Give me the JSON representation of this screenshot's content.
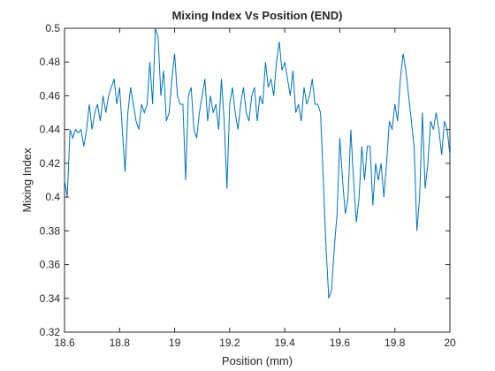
{
  "chart_data": {
    "type": "line",
    "title": "Mixing Index Vs Position (END)",
    "x_label": "Position (mm)",
    "y_label": "Mixing Index",
    "x": [
      18.6,
      18.61,
      18.62,
      18.63,
      18.64,
      18.65,
      18.66,
      18.67,
      18.68,
      18.69,
      18.7,
      18.71,
      18.72,
      18.73,
      18.74,
      18.75,
      18.76,
      18.77,
      18.78,
      18.79,
      18.8,
      18.81,
      18.82,
      18.83,
      18.84,
      18.85,
      18.86,
      18.87,
      18.88,
      18.89,
      18.9,
      18.91,
      18.92,
      18.93,
      18.94,
      18.95,
      18.96,
      18.97,
      18.98,
      18.99,
      19,
      19.01,
      19.02,
      19.03,
      19.04,
      19.05,
      19.06,
      19.07,
      19.08,
      19.09,
      19.1,
      19.11,
      19.12,
      19.13,
      19.14,
      19.15,
      19.16,
      19.17,
      19.18,
      19.19,
      19.2,
      19.21,
      19.22,
      19.23,
      19.24,
      19.25,
      19.26,
      19.27,
      19.28,
      19.29,
      19.3,
      19.31,
      19.32,
      19.33,
      19.34,
      19.35,
      19.36,
      19.37,
      19.38,
      19.39,
      19.4,
      19.41,
      19.42,
      19.43,
      19.44,
      19.45,
      19.46,
      19.47,
      19.48,
      19.49,
      19.5,
      19.51,
      19.52,
      19.53,
      19.54,
      19.55,
      19.56,
      19.57,
      19.58,
      19.59,
      19.6,
      19.61,
      19.62,
      19.63,
      19.64,
      19.65,
      19.66,
      19.67,
      19.68,
      19.69,
      19.7,
      19.71,
      19.72,
      19.73,
      19.74,
      19.75,
      19.76,
      19.77,
      19.78,
      19.79,
      19.8,
      19.81,
      19.82,
      19.83,
      19.84,
      19.85,
      19.86,
      19.87,
      19.88,
      19.89,
      19.9,
      19.91,
      19.92,
      19.93,
      19.94,
      19.95,
      19.96,
      19.97,
      19.98,
      19.99,
      20
    ],
    "series": [
      {
        "name": "Mixing Index",
        "color": "#0072bd",
        "values": [
          0.41,
          0.4,
          0.44,
          0.435,
          0.44,
          0.438,
          0.44,
          0.43,
          0.44,
          0.455,
          0.44,
          0.45,
          0.455,
          0.445,
          0.46,
          0.45,
          0.46,
          0.465,
          0.47,
          0.455,
          0.465,
          0.44,
          0.415,
          0.45,
          0.465,
          0.455,
          0.445,
          0.44,
          0.455,
          0.45,
          0.455,
          0.48,
          0.455,
          0.5,
          0.495,
          0.46,
          0.475,
          0.445,
          0.45,
          0.47,
          0.485,
          0.46,
          0.455,
          0.455,
          0.41,
          0.46,
          0.465,
          0.44,
          0.435,
          0.45,
          0.46,
          0.47,
          0.445,
          0.46,
          0.45,
          0.455,
          0.44,
          0.47,
          0.445,
          0.405,
          0.455,
          0.465,
          0.45,
          0.44,
          0.455,
          0.465,
          0.45,
          0.445,
          0.46,
          0.465,
          0.445,
          0.46,
          0.455,
          0.48,
          0.465,
          0.47,
          0.46,
          0.48,
          0.492,
          0.475,
          0.48,
          0.47,
          0.46,
          0.475,
          0.45,
          0.455,
          0.445,
          0.465,
          0.455,
          0.46,
          0.47,
          0.455,
          0.455,
          0.45,
          0.41,
          0.37,
          0.34,
          0.345,
          0.37,
          0.39,
          0.435,
          0.41,
          0.39,
          0.4,
          0.44,
          0.41,
          0.385,
          0.4,
          0.43,
          0.41,
          0.43,
          0.43,
          0.395,
          0.42,
          0.41,
          0.42,
          0.4,
          0.42,
          0.445,
          0.44,
          0.455,
          0.445,
          0.47,
          0.485,
          0.475,
          0.46,
          0.445,
          0.43,
          0.38,
          0.4,
          0.45,
          0.405,
          0.42,
          0.445,
          0.44,
          0.45,
          0.44,
          0.425,
          0.445,
          0.44,
          0.425
        ]
      }
    ],
    "xlim": [
      18.6,
      20
    ],
    "ylim": [
      0.32,
      0.5
    ],
    "xticks": [
      18.6,
      18.8,
      19,
      19.2,
      19.4,
      19.6,
      19.8,
      20
    ],
    "yticks": [
      0.32,
      0.34,
      0.36,
      0.38,
      0.4,
      0.42,
      0.44,
      0.46,
      0.48,
      0.5
    ]
  }
}
